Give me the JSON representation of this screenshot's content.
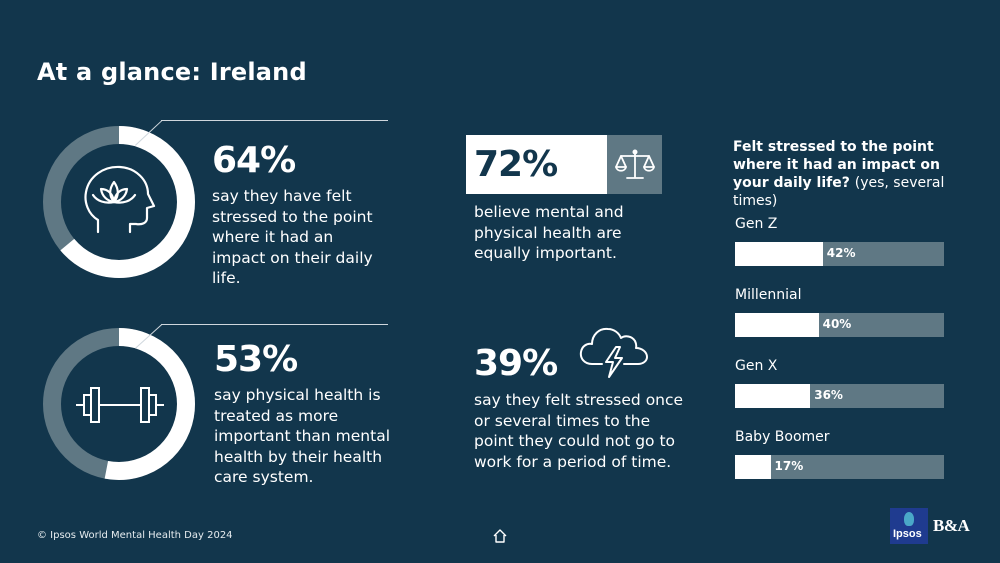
{
  "title": "At a glance: Ireland",
  "stats": {
    "stress_impact": {
      "value": "64%",
      "text": "say they have felt stressed to the point where it had an impact on their daily life.",
      "fraction": 0.64
    },
    "physical_priority": {
      "value": "53%",
      "text": "say physical health is treated as more important than mental health by their health care system.",
      "fraction": 0.53
    },
    "equal_importance": {
      "value": "72%",
      "text": "believe mental and physical health are equally important."
    },
    "missed_work": {
      "value": "39%",
      "text": "say they felt stressed once or several times to the point they could not go to work for a period of time."
    }
  },
  "icons": {
    "head": "head-with-lotus-icon",
    "dumbbell": "dumbbell-icon",
    "scales": "balance-scale-icon",
    "storm": "storm-cloud-icon",
    "home": "home-icon"
  },
  "colors": {
    "background": "#12364c",
    "accent_grey": "#5f7884",
    "white": "#ffffff"
  },
  "chart_data": {
    "type": "bar",
    "title": "Felt stressed to the point where it had an impact on your daily life?",
    "subtitle": "(yes, several times)",
    "categories": [
      "Gen Z",
      "Millennial",
      "Gen X",
      "Baby Boomer"
    ],
    "values": [
      42,
      40,
      36,
      17
    ],
    "labels": [
      "42%",
      "40%",
      "36%",
      "17%"
    ],
    "ylim": [
      0,
      100
    ]
  },
  "footer": "© Ipsos World Mental Health Day 2024",
  "logos": {
    "ipsos": "Ipsos",
    "ba": "B&A"
  }
}
